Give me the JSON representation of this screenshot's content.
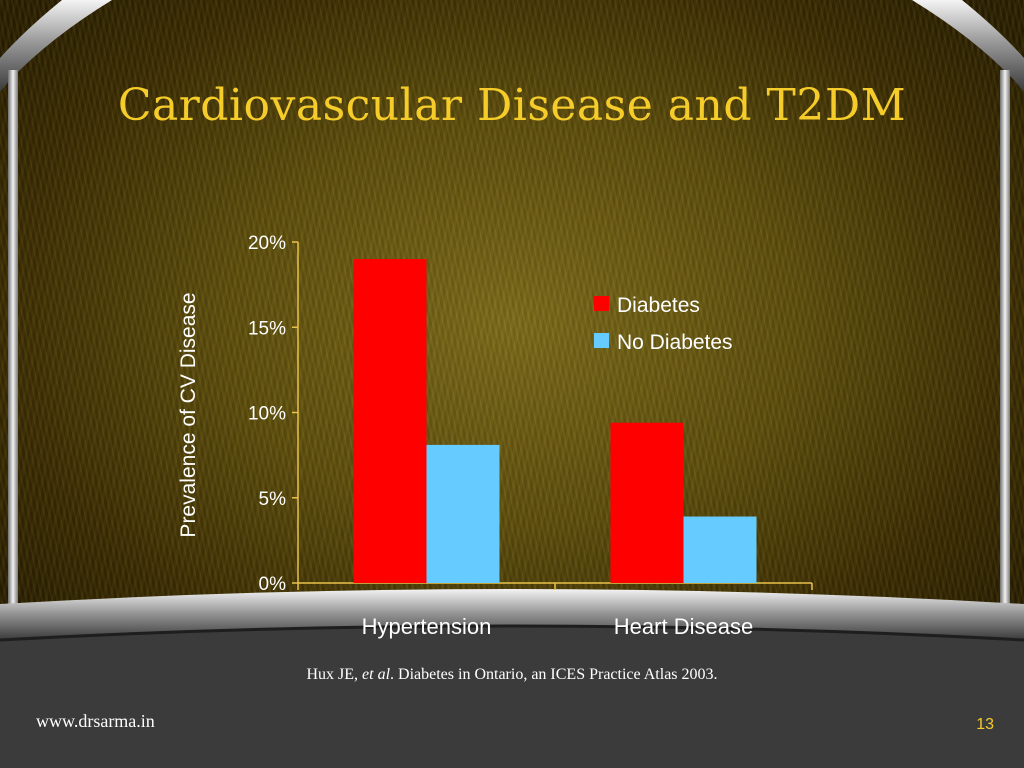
{
  "slide": {
    "title": "Cardiovascular Disease and T2DM",
    "citation": {
      "author": "Hux JE, ",
      "etal": "et al",
      "rest": ". Diabetes in Ontario, an ICES Practice Atlas 2003."
    },
    "footer_url": "www.drsarma.in",
    "page_number": "13"
  },
  "colors": {
    "title": "#f5cc2a",
    "diabetes": "#ff0000",
    "no_diabetes": "#66ccff",
    "axis": "#e8c24a"
  },
  "chart_data": {
    "type": "bar",
    "title": "",
    "categories": [
      "Hypertension",
      "Heart Disease"
    ],
    "series": [
      {
        "name": "Diabetes",
        "values": [
          19.0,
          9.4
        ]
      },
      {
        "name": "No Diabetes",
        "values": [
          8.1,
          3.9
        ]
      }
    ],
    "xlabel": "",
    "ylabel": "Prevalence of CV Disease",
    "ylim": [
      0,
      20
    ],
    "yticks": [
      0,
      5,
      10,
      15,
      20
    ],
    "ytick_labels": [
      "0%",
      "5%",
      "10%",
      "15%",
      "20%"
    ],
    "legend_position": "top-right",
    "grid": false
  }
}
